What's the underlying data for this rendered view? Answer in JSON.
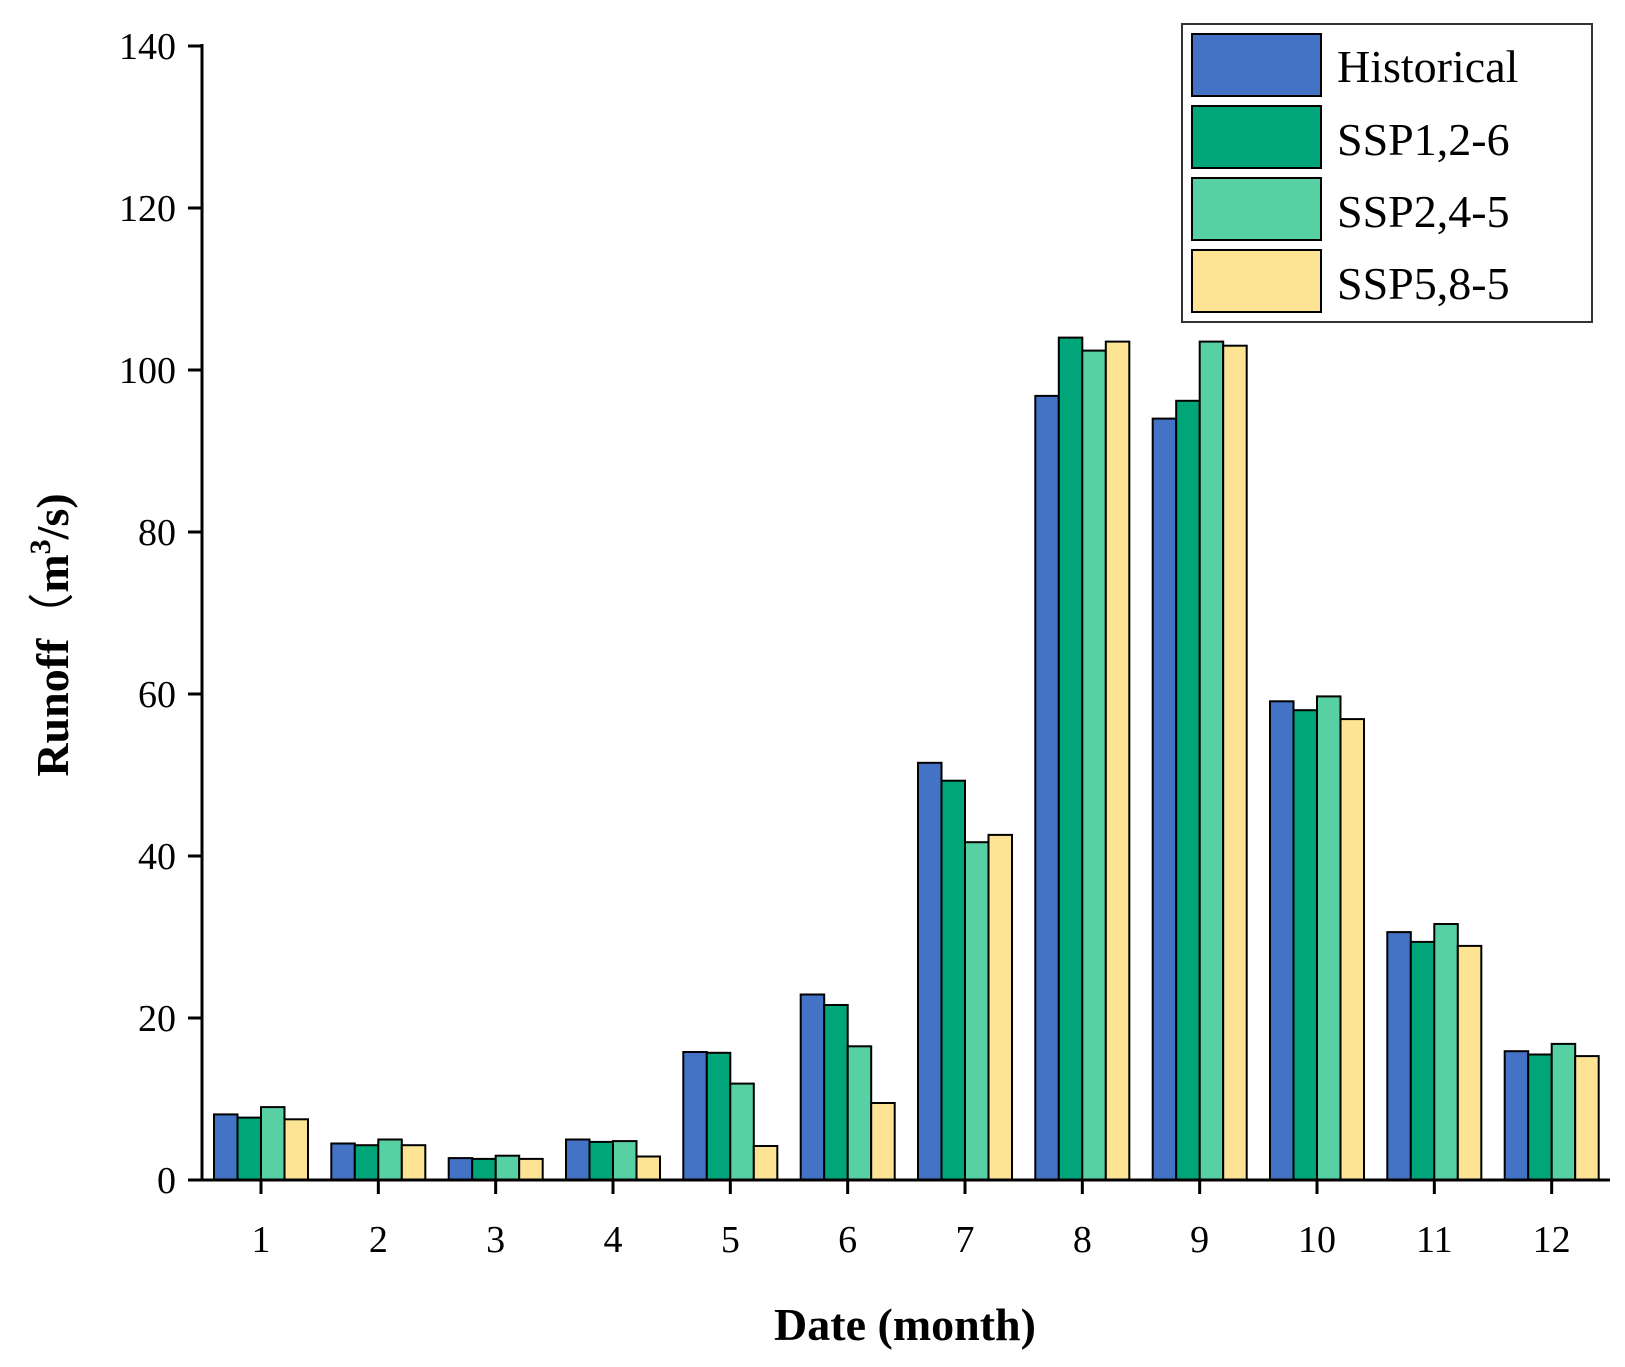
{
  "chart_data": {
    "type": "bar",
    "title": "",
    "xlabel": "Date (month)",
    "ylabel_main": "Runoff",
    "ylabel_paren_open": "（",
    "ylabel_unit": "m",
    "ylabel_sup": "3",
    "ylabel_unit_tail": "/s)",
    "ylim": [
      0,
      140
    ],
    "yticks": [
      0,
      20,
      40,
      60,
      80,
      100,
      120,
      140
    ],
    "categories": [
      "1",
      "2",
      "3",
      "4",
      "5",
      "6",
      "7",
      "8",
      "9",
      "10",
      "11",
      "12"
    ],
    "legend_position": "top-right",
    "series": [
      {
        "name": "Historical",
        "color": "#4472C4",
        "values": [
          8.1,
          4.5,
          2.7,
          5.0,
          15.8,
          22.9,
          51.5,
          96.8,
          94.0,
          59.1,
          30.6,
          15.9
        ]
      },
      {
        "name": "SSP1,2-6",
        "color": "#00A67A",
        "values": [
          7.7,
          4.3,
          2.6,
          4.7,
          15.7,
          21.6,
          49.3,
          104.0,
          96.2,
          58.0,
          29.4,
          15.5
        ]
      },
      {
        "name": "SSP2,4-5",
        "color": "#57D1A4",
        "values": [
          9.0,
          5.0,
          3.0,
          4.8,
          11.9,
          16.5,
          41.7,
          102.4,
          103.5,
          59.7,
          31.6,
          16.8
        ]
      },
      {
        "name": "SSP5,8-5",
        "color": "#FDE495",
        "values": [
          7.5,
          4.3,
          2.6,
          2.9,
          4.2,
          9.5,
          42.6,
          103.5,
          103.0,
          56.9,
          28.9,
          15.3
        ]
      }
    ]
  }
}
